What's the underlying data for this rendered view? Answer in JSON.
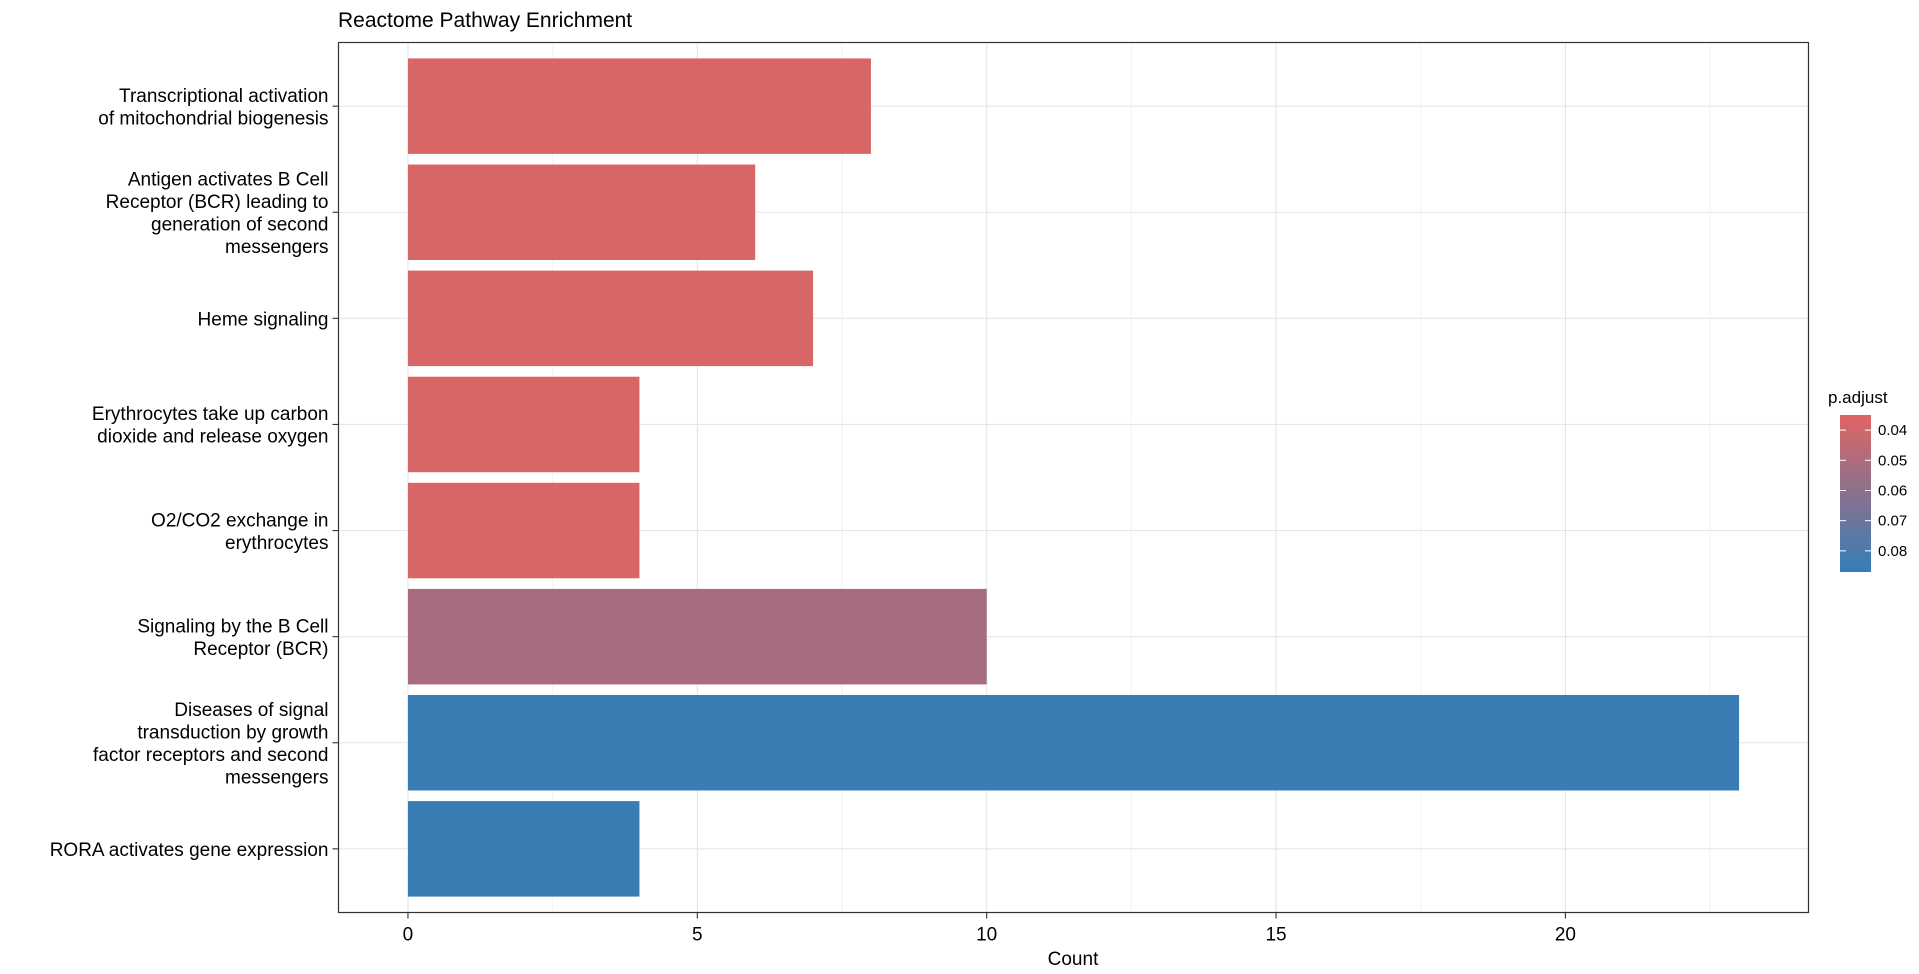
{
  "chart_data": {
    "type": "bar",
    "orientation": "horizontal",
    "title": "Reactome Pathway Enrichment",
    "xlabel": "Count",
    "ylabel": "",
    "xlim": [
      -1.2,
      24.2
    ],
    "xticks": [
      0,
      5,
      10,
      15,
      20
    ],
    "grid": true,
    "categories": [
      [
        "Transcriptional activation",
        "of mitochondrial biogenesis"
      ],
      [
        "Antigen activates B Cell",
        "Receptor (BCR) leading to",
        "generation of second",
        "messengers"
      ],
      [
        "Heme signaling"
      ],
      [
        "Erythrocytes take up carbon",
        "dioxide and release oxygen"
      ],
      [
        "O2/CO2 exchange in",
        "erythrocytes"
      ],
      [
        "Signaling by the B Cell",
        "Receptor (BCR)"
      ],
      [
        "Diseases of signal",
        "transduction by growth",
        "factor receptors and second",
        "messengers"
      ],
      [
        "RORA activates gene expression"
      ]
    ],
    "values": [
      8,
      6,
      7,
      4,
      4,
      10,
      23,
      4
    ],
    "p_adjust": [
      0.037,
      0.037,
      0.037,
      0.037,
      0.037,
      0.052,
      0.085,
      0.085
    ],
    "legend": {
      "title": "p.adjust",
      "position": "right",
      "ticks": [
        0.04,
        0.05,
        0.06,
        0.07,
        0.08
      ],
      "range": [
        0.035,
        0.087
      ],
      "color_low": "#E06563",
      "color_high": "#337EB8"
    }
  }
}
